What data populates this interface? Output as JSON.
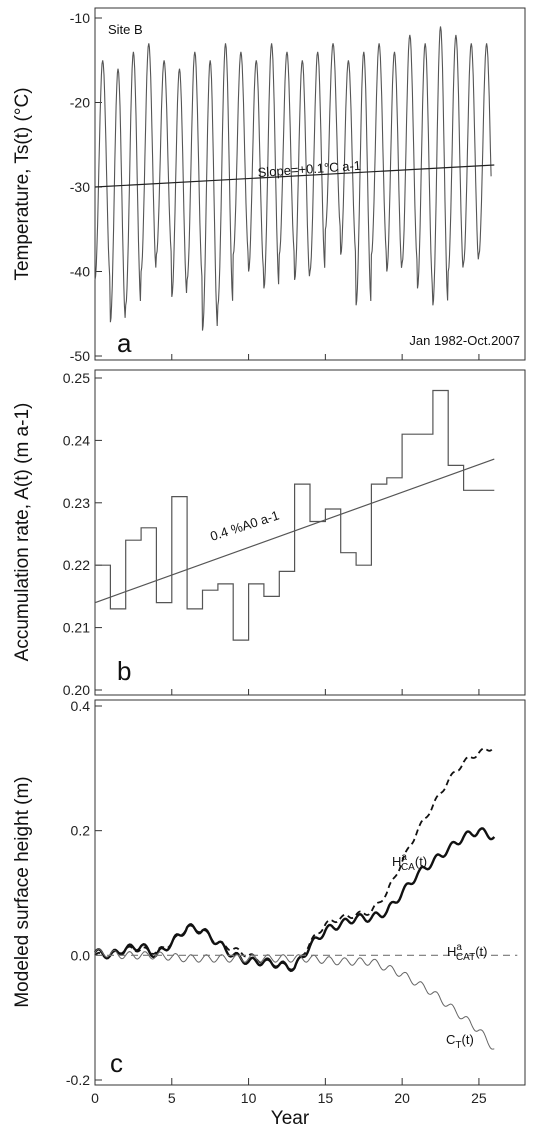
{
  "chart_data": [
    {
      "type": "line",
      "panel_letter": "a",
      "site_label": "Site B",
      "period_label": "Jan 1982-Oct.2007",
      "ylabel": "Temperature, Ts(t) (°C)",
      "ylim": [
        -50,
        -10
      ],
      "yticks": [
        -50,
        -40,
        -30,
        -20,
        -10
      ],
      "series": [
        {
          "kind": "monthly-temperature",
          "x_start": 0,
          "x_end": 25.8,
          "mean_start": -30,
          "amplitude": 13,
          "cycles_per_year": 1,
          "winter_minima": [
            -41,
            -46,
            -44,
            -40,
            -38,
            -43,
            -41,
            -47,
            -44,
            -38,
            -40,
            -42,
            -38,
            -41,
            -40,
            -35,
            -38,
            -44,
            -38,
            -40,
            -39,
            -42,
            -44,
            -40,
            -39,
            -38
          ],
          "summer_maxima": [
            -15,
            -16,
            -14,
            -13,
            -15,
            -16,
            -14,
            -15,
            -13,
            -14,
            -15,
            -13,
            -14,
            -15,
            -14,
            -13,
            -15,
            -14,
            -13,
            -14,
            -12,
            -13,
            -11,
            -12,
            -13,
            -13
          ]
        }
      ],
      "trend": {
        "label": "Slope=+0.1°C a-1",
        "x": [
          0,
          26
        ],
        "y": [
          -30,
          -27.4
        ]
      }
    },
    {
      "type": "line",
      "panel_letter": "b",
      "ylabel": "Accumulation rate, A(t) (m a-1)",
      "ylim": [
        0.2,
        0.25
      ],
      "yticks": [
        0.2,
        0.21,
        0.22,
        0.23,
        0.24,
        0.25
      ],
      "step_series": {
        "x": [
          0,
          1,
          2,
          3,
          4,
          5,
          6,
          7,
          8,
          9,
          10,
          11,
          12,
          13,
          14,
          15,
          16,
          17,
          18,
          19,
          20,
          21,
          22,
          23,
          24,
          25
        ],
        "y": [
          0.22,
          0.213,
          0.224,
          0.226,
          0.214,
          0.231,
          0.213,
          0.216,
          0.217,
          0.208,
          0.217,
          0.215,
          0.219,
          0.233,
          0.227,
          0.229,
          0.222,
          0.22,
          0.233,
          0.234,
          0.241,
          0.241,
          0.248,
          0.236,
          0.232,
          0.232
        ],
        "x_end": 26
      },
      "trend": {
        "label": "0.4 %A0 a-1",
        "x": [
          0,
          26
        ],
        "y": [
          0.214,
          0.237
        ]
      }
    },
    {
      "type": "line",
      "panel_letter": "c",
      "ylabel": "Modeled surface height (m)",
      "xlabel": "Year",
      "xlim": [
        0,
        28
      ],
      "xticks": [
        0,
        5,
        10,
        15,
        20,
        25
      ],
      "ylim": [
        -0.2,
        0.4
      ],
      "yticks": [
        -0.2,
        0.0,
        0.2,
        0.4
      ],
      "series": [
        {
          "name": "HaCA(t)",
          "style": "dashed",
          "x": [
            0,
            1,
            2,
            3,
            4,
            5,
            6,
            7,
            8,
            9,
            10,
            11,
            12,
            13,
            14,
            15,
            16,
            17,
            18,
            19,
            20,
            21,
            22,
            23,
            24,
            25,
            26
          ],
          "y": [
            0.0,
            0.0,
            0.01,
            0.01,
            0.005,
            0.02,
            0.045,
            0.04,
            0.02,
            0.01,
            0.0,
            -0.01,
            -0.015,
            -0.02,
            0.02,
            0.05,
            0.06,
            0.065,
            0.07,
            0.1,
            0.15,
            0.2,
            0.24,
            0.28,
            0.31,
            0.325,
            0.335
          ]
        },
        {
          "name": "HaCAT(t)",
          "style": "thick",
          "x": [
            0,
            1,
            2,
            3,
            4,
            5,
            6,
            7,
            8,
            9,
            10,
            11,
            12,
            13,
            14,
            15,
            16,
            17,
            18,
            19,
            20,
            21,
            22,
            23,
            24,
            25,
            26
          ],
          "y": [
            0.005,
            0.0,
            0.01,
            0.015,
            0.0,
            0.02,
            0.045,
            0.04,
            0.02,
            0.0,
            -0.01,
            -0.01,
            -0.015,
            -0.02,
            0.015,
            0.04,
            0.05,
            0.06,
            0.06,
            0.07,
            0.1,
            0.13,
            0.15,
            0.17,
            0.19,
            0.2,
            0.19
          ]
        },
        {
          "name": "CT(t)",
          "style": "thin-oscillating",
          "x": [
            0,
            2,
            4,
            6,
            8,
            10,
            12,
            14,
            16,
            18,
            19,
            20,
            21,
            22,
            23,
            24,
            25,
            26
          ],
          "y": [
            0.005,
            0.0,
            0.0,
            -0.005,
            -0.005,
            -0.005,
            -0.005,
            -0.005,
            -0.01,
            -0.01,
            -0.02,
            -0.03,
            -0.045,
            -0.06,
            -0.08,
            -0.1,
            -0.12,
            -0.15
          ]
        },
        {
          "name": "zero",
          "style": "dashed-gray",
          "x": [
            0,
            27.5
          ],
          "y": [
            0,
            0
          ]
        }
      ],
      "annotations": {
        "haca": {
          "base": "H",
          "sup": "a",
          "sub": "CA",
          "tail": "(t)"
        },
        "hacat": {
          "base": "H",
          "sup": "a",
          "sub": "CAT",
          "tail": "(t)"
        },
        "ct": {
          "base": "C",
          "sub": "T",
          "tail": "(t)"
        }
      }
    }
  ]
}
